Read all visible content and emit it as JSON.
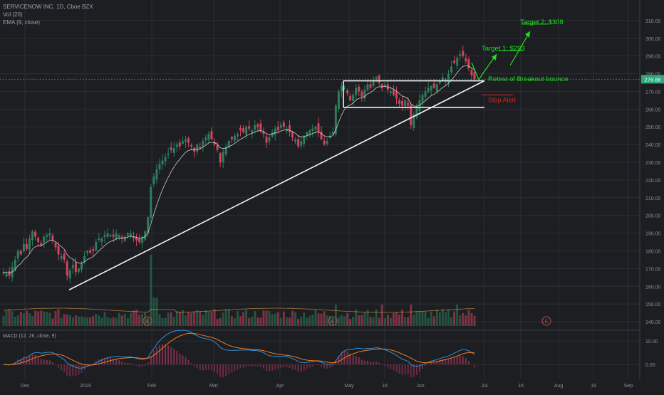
{
  "legend": {
    "title": "SERVICENOW INC, 1D, Cboe BZX",
    "vol": "Vol (20)",
    "ema": "EMA (9, close)",
    "macd": "MACD (12, 26, close, 9)"
  },
  "price_badge": "276.88",
  "earnings_marker": "E",
  "colors": {
    "background": "#1c1e22",
    "grid": "#2b2e34",
    "up": "#2e7d5b",
    "down": "#d0445e",
    "ema": "#e8e8e8",
    "trendline": "#f2f2f2",
    "annotation": "#22dd22",
    "stop": "#e0201f",
    "badge": "#2ea87a",
    "macd_line": "#2d8fd5",
    "signal_line": "#f07b22"
  },
  "chart_data": [
    {
      "type": "candlestick",
      "title": "SERVICENOW INC, 1D, Cboe BZX",
      "y_axis_ticks": [
        "310.00",
        "300.00",
        "290.00",
        "280.00",
        "270.00",
        "260.00",
        "250.00",
        "240.00",
        "230.00",
        "220.00",
        "210.00",
        "200.00",
        "190.00",
        "180.00",
        "170.00",
        "160.00",
        "150.00",
        "140.00"
      ],
      "ylim": [
        136,
        320
      ],
      "x_axis_ticks": [
        "Dec",
        "2019",
        "Feb",
        "Mar",
        "Apr",
        "May",
        "16",
        "Jun",
        "Jul",
        "16",
        "Aug",
        "16",
        "Sep"
      ],
      "grid": true,
      "closes": [
        168,
        167,
        166,
        171,
        175,
        180,
        178,
        184,
        181,
        187,
        191,
        188,
        185,
        183,
        188,
        189,
        190,
        186,
        182,
        178,
        177,
        175,
        166,
        169,
        172,
        168,
        170,
        173,
        177,
        180,
        179,
        180,
        185,
        187,
        187,
        189,
        190,
        189,
        188,
        190,
        189,
        187,
        188,
        190,
        190,
        187,
        186,
        185,
        188,
        191,
        199,
        216,
        222,
        226,
        229,
        231,
        233,
        235,
        237,
        238,
        240,
        239,
        242,
        243,
        241,
        239,
        236,
        240,
        238,
        242,
        244,
        246,
        243,
        240,
        237,
        230,
        236,
        239,
        242,
        243,
        245,
        246,
        248,
        247,
        250,
        249,
        248,
        251,
        250,
        248,
        246,
        241,
        244,
        247,
        249,
        248,
        251,
        250,
        249,
        247,
        244,
        243,
        239,
        242,
        245,
        247,
        248,
        249,
        250,
        247,
        243,
        240,
        242,
        245,
        247,
        262,
        270,
        273,
        272,
        269,
        265,
        268,
        272,
        270,
        267,
        271,
        274,
        272,
        276,
        278,
        275,
        272,
        274,
        271,
        270,
        268,
        266,
        263,
        262,
        265,
        262,
        251,
        257,
        261,
        265,
        268,
        270,
        272,
        273,
        272,
        274,
        276,
        278,
        277,
        280,
        284,
        286,
        289,
        291,
        290,
        287,
        283,
        279,
        276.88
      ],
      "ema_last": 279,
      "annotations": {
        "target_1": "Target 1: $293",
        "target_2": "Target 2: $308",
        "retest": "Retest of Breakout bounce",
        "stop": "Stop Alert",
        "target_1_level": 293,
        "target_2_level": 308,
        "stop_level": 268,
        "box_top": 276,
        "box_bottom": 261,
        "trend_start": 158,
        "trend_end": 276,
        "last_price": 276.88
      }
    },
    {
      "type": "bar",
      "title": "Vol (20)",
      "note": "volume histogram under price pane, relative scale"
    },
    {
      "type": "line",
      "title": "MACD (12, 26, close, 9)",
      "y_axis_ticks": [
        "10.00",
        "0.00"
      ],
      "ylim": [
        -6,
        14
      ]
    }
  ]
}
